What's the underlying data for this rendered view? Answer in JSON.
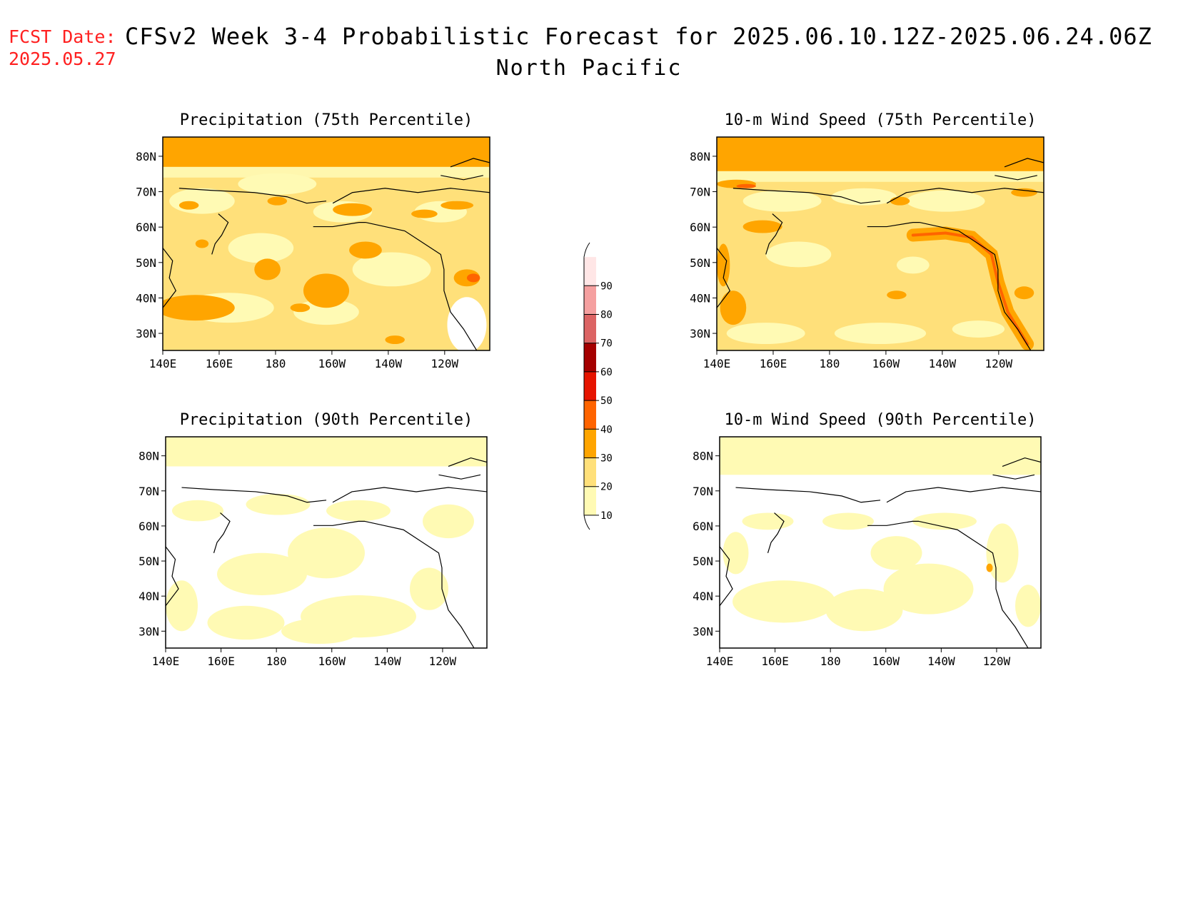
{
  "header": {
    "fcst_label": "FCST Date:",
    "fcst_date": "2025.05.27",
    "title": "CFSv2 Week 3-4 Probabilistic Forecast for 2025.06.10.12Z-2025.06.24.06Z",
    "region": "North Pacific"
  },
  "axes": {
    "lon_ticks": [
      "140E",
      "160E",
      "180",
      "160W",
      "140W",
      "120W"
    ],
    "lat_ticks": [
      "80N",
      "70N",
      "60N",
      "50N",
      "40N",
      "30N"
    ]
  },
  "panels": [
    {
      "id": "precip75",
      "title": "Precipitation (75th Percentile)"
    },
    {
      "id": "wind75",
      "title": "10-m Wind Speed (75th Percentile)"
    },
    {
      "id": "precip90",
      "title": "Precipitation (90th Percentile)"
    },
    {
      "id": "wind90",
      "title": "10-m Wind Speed (90th Percentile)"
    }
  ],
  "colorbar": {
    "levels": [
      "10",
      "20",
      "30",
      "40",
      "50",
      "60",
      "70",
      "80",
      "90"
    ],
    "colors": [
      "#fffab4",
      "#ffe07a",
      "#ffa500",
      "#ff6400",
      "#e61400",
      "#a50000",
      "#dc6464",
      "#f5a0a0",
      "#ffe6e6"
    ]
  },
  "colors": {
    "fcst_date": "#ff2020",
    "coastline": "#000000"
  }
}
